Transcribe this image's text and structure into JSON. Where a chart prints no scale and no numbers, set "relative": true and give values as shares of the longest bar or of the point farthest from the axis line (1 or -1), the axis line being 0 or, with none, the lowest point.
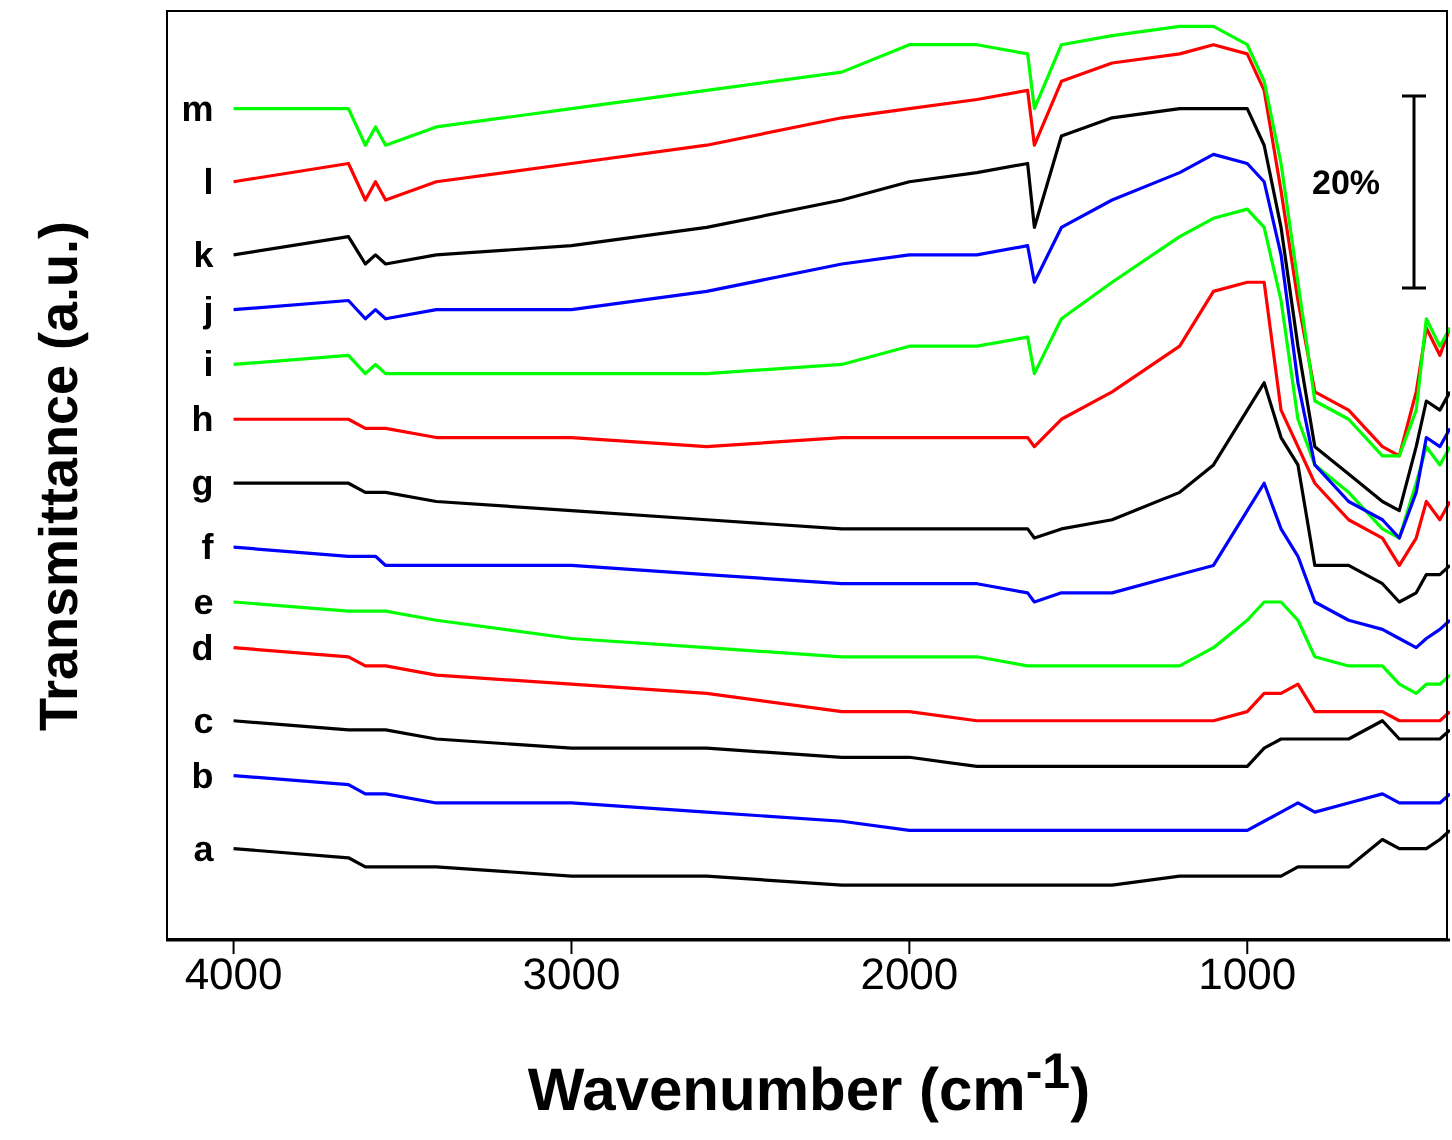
{
  "chart_data": {
    "type": "line",
    "relative": true,
    "xlabel": "Wavenumber (cm$^{-1}$)",
    "ylabel": "Transmittance (a.u.)",
    "annotations": [
      "20%"
    ],
    "marker": "none",
    "xlim": [
      4200,
      400
    ],
    "xticks": [
      4000,
      3000,
      2000,
      1000
    ],
    "x": [
      4000,
      3660,
      3610,
      3580,
      3550,
      3400,
      3000,
      2600,
      2200,
      2000,
      1800,
      1650,
      1630,
      1550,
      1400,
      1200,
      1100,
      1000,
      950,
      900,
      850,
      800,
      700,
      600,
      550,
      500,
      470,
      430,
      400
    ],
    "series": [
      {
        "name": "a",
        "color": "#000000",
        "values": [
          0.1,
          0.09,
          0.08,
          0.08,
          0.08,
          0.08,
          0.07,
          0.07,
          0.06,
          0.06,
          0.06,
          0.06,
          0.06,
          0.06,
          0.06,
          0.07,
          0.07,
          0.07,
          0.07,
          0.07,
          0.08,
          0.08,
          0.08,
          0.11,
          0.1,
          0.1,
          0.1,
          0.11,
          0.12
        ]
      },
      {
        "name": "b",
        "color": "#0000ff",
        "values": [
          0.18,
          0.17,
          0.16,
          0.16,
          0.16,
          0.15,
          0.15,
          0.14,
          0.13,
          0.12,
          0.12,
          0.12,
          0.12,
          0.12,
          0.12,
          0.12,
          0.12,
          0.12,
          0.13,
          0.14,
          0.15,
          0.14,
          0.15,
          0.16,
          0.15,
          0.15,
          0.15,
          0.15,
          0.16
        ]
      },
      {
        "name": "c",
        "color": "#000000",
        "values": [
          0.24,
          0.23,
          0.23,
          0.23,
          0.23,
          0.22,
          0.21,
          0.21,
          0.2,
          0.2,
          0.19,
          0.19,
          0.19,
          0.19,
          0.19,
          0.19,
          0.19,
          0.19,
          0.21,
          0.22,
          0.22,
          0.22,
          0.22,
          0.24,
          0.22,
          0.22,
          0.22,
          0.22,
          0.23
        ]
      },
      {
        "name": "d",
        "color": "#ff0000",
        "values": [
          0.32,
          0.31,
          0.3,
          0.3,
          0.3,
          0.29,
          0.28,
          0.27,
          0.25,
          0.25,
          0.24,
          0.24,
          0.24,
          0.24,
          0.24,
          0.24,
          0.24,
          0.25,
          0.27,
          0.27,
          0.28,
          0.25,
          0.25,
          0.25,
          0.24,
          0.24,
          0.24,
          0.24,
          0.25
        ]
      },
      {
        "name": "e",
        "color": "#00ff00",
        "values": [
          0.37,
          0.36,
          0.36,
          0.36,
          0.36,
          0.35,
          0.33,
          0.32,
          0.31,
          0.31,
          0.31,
          0.3,
          0.3,
          0.3,
          0.3,
          0.3,
          0.32,
          0.35,
          0.37,
          0.37,
          0.35,
          0.31,
          0.3,
          0.3,
          0.28,
          0.27,
          0.28,
          0.28,
          0.29
        ]
      },
      {
        "name": "f",
        "color": "#0000ff",
        "values": [
          0.43,
          0.42,
          0.42,
          0.42,
          0.41,
          0.41,
          0.41,
          0.4,
          0.39,
          0.39,
          0.39,
          0.38,
          0.37,
          0.38,
          0.38,
          0.4,
          0.41,
          0.47,
          0.5,
          0.45,
          0.42,
          0.37,
          0.35,
          0.34,
          0.33,
          0.32,
          0.33,
          0.34,
          0.35
        ]
      },
      {
        "name": "g",
        "color": "#000000",
        "values": [
          0.5,
          0.5,
          0.49,
          0.49,
          0.49,
          0.48,
          0.47,
          0.46,
          0.45,
          0.45,
          0.45,
          0.45,
          0.44,
          0.45,
          0.46,
          0.49,
          0.52,
          0.58,
          0.61,
          0.55,
          0.52,
          0.41,
          0.41,
          0.39,
          0.37,
          0.38,
          0.4,
          0.4,
          0.41
        ]
      },
      {
        "name": "h",
        "color": "#ff0000",
        "values": [
          0.57,
          0.57,
          0.56,
          0.56,
          0.56,
          0.55,
          0.55,
          0.54,
          0.55,
          0.55,
          0.55,
          0.55,
          0.54,
          0.57,
          0.6,
          0.65,
          0.71,
          0.72,
          0.72,
          0.58,
          0.54,
          0.5,
          0.46,
          0.44,
          0.41,
          0.44,
          0.48,
          0.46,
          0.48
        ]
      },
      {
        "name": "i",
        "color": "#00ff00",
        "values": [
          0.63,
          0.64,
          0.62,
          0.63,
          0.62,
          0.62,
          0.62,
          0.62,
          0.63,
          0.65,
          0.65,
          0.66,
          0.62,
          0.68,
          0.72,
          0.77,
          0.79,
          0.8,
          0.78,
          0.7,
          0.57,
          0.52,
          0.49,
          0.45,
          0.44,
          0.5,
          0.54,
          0.52,
          0.54
        ]
      },
      {
        "name": "j",
        "color": "#0000ff",
        "values": [
          0.69,
          0.7,
          0.68,
          0.69,
          0.68,
          0.69,
          0.69,
          0.71,
          0.74,
          0.75,
          0.75,
          0.76,
          0.72,
          0.78,
          0.81,
          0.84,
          0.86,
          0.85,
          0.83,
          0.75,
          0.61,
          0.52,
          0.48,
          0.46,
          0.44,
          0.49,
          0.55,
          0.54,
          0.56
        ]
      },
      {
        "name": "k",
        "color": "#000000",
        "values": [
          0.75,
          0.77,
          0.74,
          0.75,
          0.74,
          0.75,
          0.76,
          0.78,
          0.81,
          0.83,
          0.84,
          0.85,
          0.78,
          0.88,
          0.9,
          0.91,
          0.91,
          0.91,
          0.87,
          0.78,
          0.65,
          0.54,
          0.51,
          0.48,
          0.47,
          0.54,
          0.59,
          0.58,
          0.6
        ]
      },
      {
        "name": "l",
        "color": "#ff0000",
        "values": [
          0.83,
          0.85,
          0.81,
          0.83,
          0.81,
          0.83,
          0.85,
          0.87,
          0.9,
          0.91,
          0.92,
          0.93,
          0.87,
          0.94,
          0.96,
          0.97,
          0.98,
          0.97,
          0.93,
          0.82,
          0.7,
          0.6,
          0.58,
          0.54,
          0.53,
          0.6,
          0.67,
          0.64,
          0.67
        ]
      },
      {
        "name": "m",
        "color": "#00ff00",
        "values": [
          0.91,
          0.91,
          0.87,
          0.89,
          0.87,
          0.89,
          0.91,
          0.93,
          0.95,
          0.98,
          0.98,
          0.97,
          0.91,
          0.98,
          0.99,
          1,
          1,
          0.98,
          0.94,
          0.85,
          0.72,
          0.59,
          0.57,
          0.53,
          0.53,
          0.58,
          0.68,
          0.65,
          0.67
        ]
      }
    ]
  }
}
